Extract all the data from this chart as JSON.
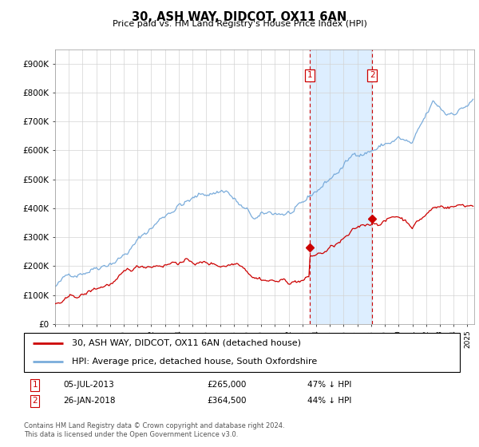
{
  "title": "30, ASH WAY, DIDCOT, OX11 6AN",
  "subtitle": "Price paid vs. HM Land Registry's House Price Index (HPI)",
  "ylabel_ticks": [
    "£0",
    "£100K",
    "£200K",
    "£300K",
    "£400K",
    "£500K",
    "£600K",
    "£700K",
    "£800K",
    "£900K"
  ],
  "ytick_vals": [
    0,
    100000,
    200000,
    300000,
    400000,
    500000,
    600000,
    700000,
    800000,
    900000
  ],
  "ylim": [
    0,
    950000
  ],
  "xlim_start": 1995.0,
  "xlim_end": 2025.5,
  "transaction1": {
    "date": 2013.54,
    "price": 265000,
    "label": "1"
  },
  "transaction2": {
    "date": 2018.07,
    "price": 364500,
    "label": "2"
  },
  "legend_line1": "30, ASH WAY, DIDCOT, OX11 6AN (detached house)",
  "legend_line2": "HPI: Average price, detached house, South Oxfordshire",
  "red_color": "#cc0000",
  "blue_color": "#7aacdb",
  "shade_color": "#ddeeff",
  "footer": "Contains HM Land Registry data © Crown copyright and database right 2024.\nThis data is licensed under the Open Government Licence v3.0."
}
